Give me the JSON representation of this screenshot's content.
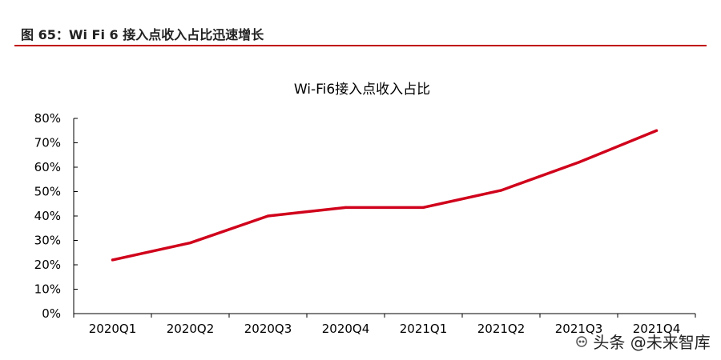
{
  "figure": {
    "title": "图 65：Wi Fi 6 接入点收入占比迅速增长"
  },
  "chart_data": {
    "type": "line",
    "title": "Wi-Fi6接入点收入占比",
    "xlabel": "",
    "ylabel": "",
    "categories": [
      "2020Q1",
      "2020Q2",
      "2020Q3",
      "2020Q4",
      "2021Q1",
      "2021Q2",
      "2021Q3",
      "2021Q4"
    ],
    "series": [
      {
        "values": [
          22,
          29,
          40,
          43.5,
          43.5,
          50.5,
          62,
          75
        ]
      }
    ],
    "y_ticks": [
      "0%",
      "10%",
      "20%",
      "30%",
      "40%",
      "50%",
      "60%",
      "70%",
      "80%"
    ],
    "ylim": [
      0,
      80
    ],
    "grid": false,
    "legend": "none",
    "series_color": "#d0021b"
  },
  "watermark": {
    "text": "头条 @未来智库",
    "icon": "weibo-like-icon"
  }
}
